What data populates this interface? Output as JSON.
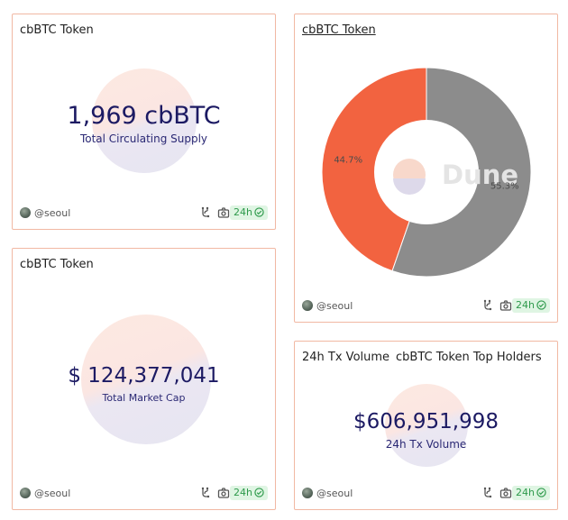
{
  "cards": {
    "supply": {
      "title": "cbBTC Token",
      "value": "1,969 cbBTC",
      "label": "Total Circulating Supply"
    },
    "market_cap": {
      "title": "cbBTC Token",
      "value": "$ 124,377,041",
      "label": "Total Market Cap"
    },
    "pie": {
      "title": "cbBTC Token",
      "watermark": "Dune"
    },
    "volume": {
      "tab_active": "24h Tx Volume",
      "tab_other": "cbBTC Token Top Holders",
      "value": "$606,951,998",
      "label": "24h Tx Volume"
    }
  },
  "footer": {
    "author": "@seoul",
    "refresh": "24h"
  },
  "colors": {
    "orange": "#f26340",
    "gray": "#8c8c8c",
    "navy": "#1c1a63",
    "border": "#f1b8a3"
  },
  "icons": [
    "avatar",
    "fork-icon",
    "camera-icon",
    "check-circle-icon"
  ],
  "chart_data": {
    "type": "pie",
    "series": [
      {
        "values": [
          44.7,
          55.3
        ]
      }
    ],
    "labels": [
      "44.7%",
      "55.3%"
    ],
    "colors": [
      "#f26340",
      "#8c8c8c"
    ],
    "donut": true
  }
}
